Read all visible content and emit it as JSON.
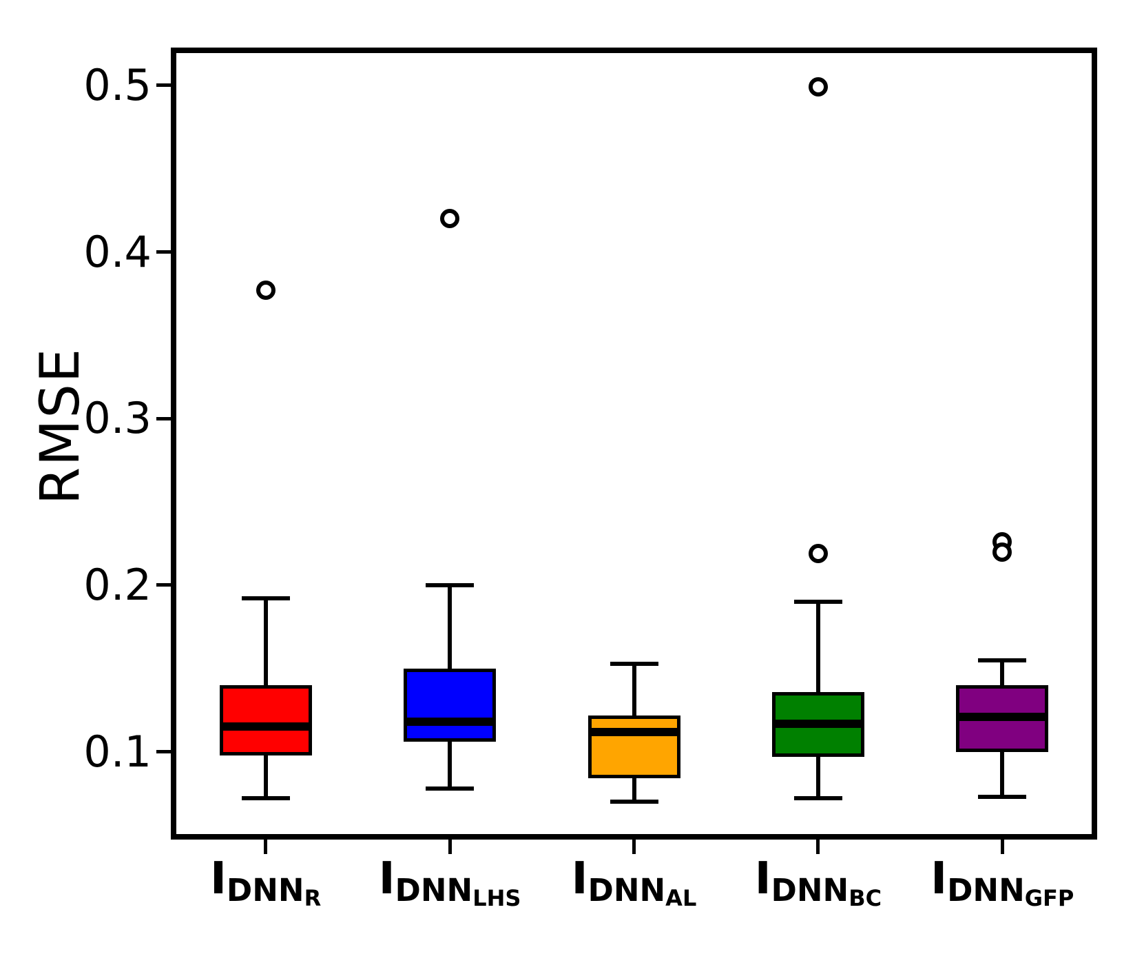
{
  "figure": {
    "ylabel": "RMSE"
  },
  "chart_data": {
    "type": "box",
    "title": "",
    "xlabel": "",
    "ylabel": "RMSE",
    "ylim": [
      0.049,
      0.521
    ],
    "grid": false,
    "legend": "none",
    "yticks": [
      {
        "value": 0.1,
        "label": "0.1"
      },
      {
        "value": 0.2,
        "label": "0.2"
      },
      {
        "value": 0.3,
        "label": "0.3"
      },
      {
        "value": 0.4,
        "label": "0.4"
      },
      {
        "value": 0.5,
        "label": "0.5"
      }
    ],
    "categories": [
      {
        "main": "I",
        "sub": "DNN",
        "subsub": "R"
      },
      {
        "main": "I",
        "sub": "DNN",
        "subsub": "LHS"
      },
      {
        "main": "I",
        "sub": "DNN",
        "subsub": "AL"
      },
      {
        "main": "I",
        "sub": "DNN",
        "subsub": "BC"
      },
      {
        "main": "I",
        "sub": "DNN",
        "subsub": "GFP"
      }
    ],
    "series": [
      {
        "name": "I_DNN_R",
        "color": "#FF0000",
        "whisker_low": 0.072,
        "q1": 0.098,
        "median": 0.115,
        "q3": 0.14,
        "whisker_high": 0.192,
        "outliers": [
          0.377
        ]
      },
      {
        "name": "I_DNN_LHS",
        "color": "#0000FF",
        "whisker_low": 0.078,
        "q1": 0.106,
        "median": 0.118,
        "q3": 0.15,
        "whisker_high": 0.2,
        "outliers": [
          0.42
        ]
      },
      {
        "name": "I_DNN_AL",
        "color": "#FFA500",
        "whisker_low": 0.07,
        "q1": 0.084,
        "median": 0.112,
        "q3": 0.122,
        "whisker_high": 0.153,
        "outliers": []
      },
      {
        "name": "I_DNN_BC",
        "color": "#008000",
        "whisker_low": 0.072,
        "q1": 0.097,
        "median": 0.117,
        "q3": 0.136,
        "whisker_high": 0.19,
        "outliers": [
          0.499,
          0.219
        ]
      },
      {
        "name": "I_DNN_GFP",
        "color": "#800080",
        "whisker_low": 0.073,
        "q1": 0.1,
        "median": 0.121,
        "q3": 0.14,
        "whisker_high": 0.155,
        "outliers": [
          0.226,
          0.22
        ]
      }
    ]
  }
}
